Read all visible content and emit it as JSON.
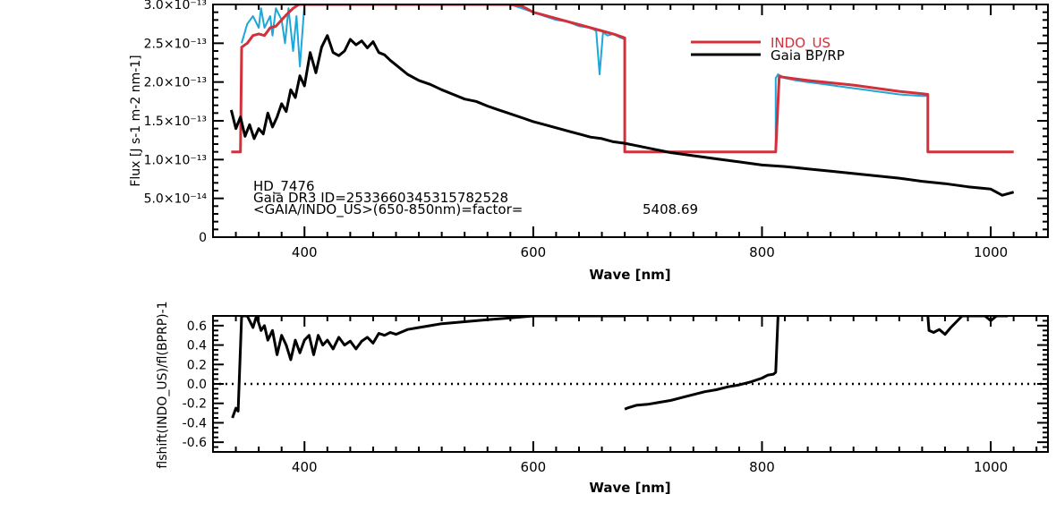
{
  "chart_data": [
    {
      "type": "line",
      "xlabel": "Wave [nm]",
      "ylabel": "Flux [J s-1 m-2 nm-1]",
      "xlim": [
        320,
        1050
      ],
      "ylim": [
        0,
        3e-13
      ],
      "xticks": [
        "400",
        "600",
        "800",
        "1000"
      ],
      "yticks": [
        "0",
        "5.0×10⁻¹⁴",
        "1.0×10⁻¹³",
        "1.5×10⁻¹³",
        "2.0×10⁻¹³",
        "2.5×10⁻¹³",
        "3.0×10⁻¹³"
      ],
      "legend": {
        "placement": "top-right",
        "entries": [
          {
            "label": "INDO_US",
            "color": "#d3303a"
          },
          {
            "label": "Gaia BP/RP",
            "color": "#000000"
          }
        ]
      },
      "annotations": [
        "HD_7476",
        "Gaia DR3 ID=2533660345315782528",
        "<GAIA/INDO_US>(650-850nm)=factor=",
        "5408.69"
      ],
      "series": [
        {
          "name": "Gaia BP/RP",
          "color": "#000000",
          "x": [
            336,
            340,
            344,
            348,
            352,
            356,
            360,
            364,
            368,
            372,
            376,
            380,
            384,
            388,
            392,
            396,
            400,
            405,
            410,
            415,
            420,
            425,
            430,
            435,
            440,
            445,
            450,
            455,
            460,
            465,
            470,
            475,
            480,
            490,
            500,
            510,
            520,
            530,
            540,
            550,
            560,
            570,
            580,
            590,
            600,
            610,
            620,
            630,
            640,
            650,
            660,
            670,
            680,
            690,
            700,
            720,
            740,
            760,
            780,
            800,
            820,
            840,
            860,
            880,
            900,
            920,
            940,
            960,
            980,
            1000,
            1010,
            1020
          ],
          "y": [
            1.64e-13,
            1.4e-13,
            1.55e-13,
            1.3e-13,
            1.45e-13,
            1.27e-13,
            1.4e-13,
            1.33e-13,
            1.6e-13,
            1.42e-13,
            1.55e-13,
            1.72e-13,
            1.62e-13,
            1.9e-13,
            1.8e-13,
            2.08e-13,
            1.95e-13,
            2.38e-13,
            2.12e-13,
            2.45e-13,
            2.6e-13,
            2.38e-13,
            2.34e-13,
            2.4e-13,
            2.55e-13,
            2.48e-13,
            2.53e-13,
            2.44e-13,
            2.52e-13,
            2.38e-13,
            2.35e-13,
            2.28e-13,
            2.22e-13,
            2.1e-13,
            2.02e-13,
            1.97e-13,
            1.9e-13,
            1.84e-13,
            1.78e-13,
            1.75e-13,
            1.69e-13,
            1.64e-13,
            1.59e-13,
            1.54e-13,
            1.49e-13,
            1.45e-13,
            1.41e-13,
            1.37e-13,
            1.33e-13,
            1.29e-13,
            1.27e-13,
            1.23e-13,
            1.21e-13,
            1.18e-13,
            1.15e-13,
            1.09e-13,
            1.05e-13,
            1.01e-13,
            9.7e-14,
            9.3e-14,
            9.1e-14,
            8.8e-14,
            8.5e-14,
            8.2e-14,
            7.9e-14,
            7.6e-14,
            7.2e-14,
            6.9e-14,
            6.5e-14,
            6.2e-14,
            5.4e-14,
            5.8e-14
          ]
        },
        {
          "name": "",
          "color": "#1ea7d8",
          "x": [
            345,
            350,
            355,
            360,
            362,
            365,
            370,
            372,
            375,
            380,
            383,
            386,
            390,
            393,
            396,
            400,
            405,
            410,
            415,
            420,
            425,
            430,
            435,
            440,
            445,
            450,
            460,
            470,
            480,
            490,
            500,
            510,
            520,
            530,
            540,
            550,
            560,
            570,
            580,
            590,
            600,
            610,
            620,
            630,
            640,
            650,
            655,
            658,
            661,
            665,
            670,
            675,
            680,
            680,
            812,
            812,
            814,
            820,
            830,
            840,
            850,
            860,
            870,
            880,
            890,
            900,
            910,
            920,
            930,
            940,
            945,
            945
          ],
          "y": [
            2.5e-13,
            2.75e-13,
            2.85e-13,
            2.7e-13,
            2.95e-13,
            2.7e-13,
            2.85e-13,
            2.6e-13,
            2.95e-13,
            2.8e-13,
            2.5e-13,
            2.95e-13,
            2.4e-13,
            2.85e-13,
            2.2e-13,
            3e-13,
            3e-13,
            3e-13,
            3e-13,
            3e-13,
            3e-13,
            3e-13,
            3e-13,
            3e-13,
            3e-13,
            3e-13,
            3e-13,
            3e-13,
            3e-13,
            3e-13,
            3e-13,
            3e-13,
            3e-13,
            3e-13,
            3e-13,
            3e-13,
            3e-13,
            3e-13,
            3e-13,
            2.95e-13,
            2.9e-13,
            2.85e-13,
            2.8e-13,
            2.78e-13,
            2.72e-13,
            2.7e-13,
            2.66e-13,
            2.1e-13,
            2.64e-13,
            2.6e-13,
            2.62e-13,
            2.58e-13,
            2.55e-13,
            1.1e-13,
            1.1e-13,
            2.05e-13,
            2.1e-13,
            2.05e-13,
            2.02e-13,
            2e-13,
            1.98e-13,
            1.96e-13,
            1.94e-13,
            1.92e-13,
            1.9e-13,
            1.88e-13,
            1.86e-13,
            1.84e-13,
            1.83e-13,
            1.82e-13,
            1.82e-13,
            1.1e-13
          ]
        },
        {
          "name": "INDO_US",
          "color": "#d3303a",
          "x": [
            336,
            344,
            345,
            350,
            355,
            360,
            365,
            370,
            375,
            380,
            385,
            390,
            395,
            400,
            420,
            440,
            460,
            480,
            500,
            520,
            540,
            560,
            580,
            590,
            600,
            610,
            620,
            630,
            640,
            650,
            660,
            670,
            680,
            680,
            812,
            815,
            820,
            840,
            860,
            880,
            900,
            920,
            940,
            945,
            945,
            1020
          ],
          "y": [
            1.1e-13,
            1.1e-13,
            2.45e-13,
            2.5e-13,
            2.6e-13,
            2.62e-13,
            2.6e-13,
            2.7e-13,
            2.72e-13,
            2.8e-13,
            2.88e-13,
            2.95e-13,
            3e-13,
            3e-13,
            3e-13,
            3e-13,
            3e-13,
            3e-13,
            3e-13,
            3e-13,
            3e-13,
            3e-13,
            3e-13,
            2.98e-13,
            2.9e-13,
            2.86e-13,
            2.82e-13,
            2.78e-13,
            2.74e-13,
            2.7e-13,
            2.66e-13,
            2.62e-13,
            2.57e-13,
            1.1e-13,
            1.1e-13,
            2.07e-13,
            2.06e-13,
            2.02e-13,
            1.99e-13,
            1.96e-13,
            1.92e-13,
            1.88e-13,
            1.85e-13,
            1.84e-13,
            1.1e-13,
            1.1e-13
          ]
        }
      ]
    },
    {
      "type": "line",
      "xlabel": "Wave [nm]",
      "ylabel": "flshift(INDO_US)/fl(BPRP)-1",
      "xlim": [
        320,
        1050
      ],
      "ylim": [
        -0.7,
        0.7
      ],
      "xticks": [
        "400",
        "600",
        "800",
        "1000"
      ],
      "yticks": [
        "-0.6",
        "-0.4",
        "-0.2",
        "0.0",
        "0.2",
        "0.4",
        "0.6"
      ],
      "reference_line": {
        "y": 0.0,
        "style": "dotted"
      },
      "series": [
        {
          "name": "",
          "color": "#000000",
          "x": [
            337,
            340,
            342,
            345,
            350,
            355,
            358,
            362,
            365,
            368,
            372,
            376,
            380,
            384,
            388,
            392,
            396,
            400,
            404,
            408,
            412,
            416,
            420,
            425,
            430,
            435,
            440,
            445,
            450,
            455,
            460,
            465,
            470,
            475,
            480,
            490,
            500,
            510,
            520,
            530,
            540,
            550,
            560,
            570,
            580,
            590,
            600,
            620,
            640,
            660,
            680
          ],
          "y": [
            -0.35,
            -0.25,
            -0.28,
            0.7,
            0.7,
            0.58,
            0.7,
            0.55,
            0.6,
            0.45,
            0.55,
            0.3,
            0.5,
            0.4,
            0.25,
            0.45,
            0.32,
            0.45,
            0.5,
            0.3,
            0.5,
            0.4,
            0.45,
            0.36,
            0.48,
            0.4,
            0.44,
            0.36,
            0.44,
            0.48,
            0.42,
            0.52,
            0.5,
            0.53,
            0.51,
            0.56,
            0.58,
            0.6,
            0.62,
            0.63,
            0.64,
            0.65,
            0.66,
            0.67,
            0.68,
            0.69,
            0.7,
            0.7,
            0.7,
            0.7,
            0.7
          ]
        },
        {
          "name": "",
          "color": "#000000",
          "x": [
            680,
            682,
            690,
            700,
            710,
            720,
            730,
            740,
            750,
            760,
            770,
            780,
            790,
            800,
            805,
            810,
            812,
            814
          ],
          "y": [
            -0.26,
            -0.25,
            -0.22,
            -0.21,
            -0.19,
            -0.17,
            -0.14,
            -0.11,
            -0.08,
            -0.06,
            -0.03,
            -0.01,
            0.02,
            0.06,
            0.09,
            0.1,
            0.12,
            0.7
          ]
        },
        {
          "name": "",
          "color": "#000000",
          "x": [
            945,
            946,
            950,
            955,
            960,
            965,
            970,
            975,
            980,
            985,
            990,
            995,
            1000,
            1005,
            1010,
            1015
          ],
          "y": [
            0.7,
            0.55,
            0.53,
            0.56,
            0.51,
            0.58,
            0.64,
            0.7,
            0.7,
            0.7,
            0.7,
            0.7,
            0.65,
            0.7,
            0.7,
            0.7
          ]
        }
      ]
    }
  ]
}
